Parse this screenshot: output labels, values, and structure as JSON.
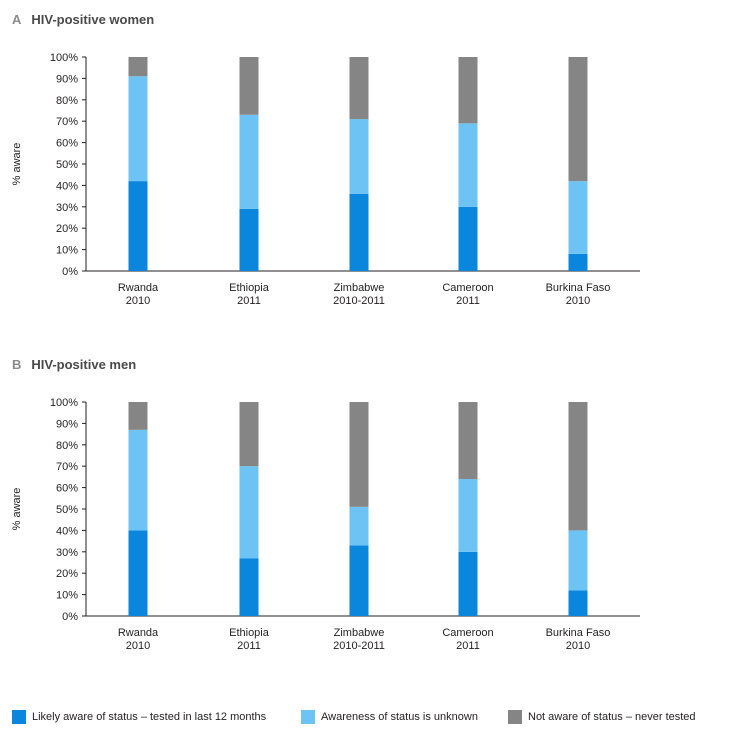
{
  "colors": {
    "aware": "#0a86dd",
    "unknown": "#6dc3f3",
    "never": "#858585"
  },
  "legend": [
    {
      "label": "Likely aware of status – tested in last 12 months",
      "color": "#0a86dd"
    },
    {
      "label": "Awareness of status is unknown",
      "color": "#6dc3f3"
    },
    {
      "label": "Not aware of status – never tested",
      "color": "#858585"
    }
  ],
  "chart_data": [
    {
      "type": "bar",
      "stacked": true,
      "panel_letter": "A",
      "title": "HIV-positive women",
      "ylabel": "% aware",
      "ylim": [
        0,
        100
      ],
      "yticks": [
        "0%",
        "10%",
        "20%",
        "30%",
        "40%",
        "50%",
        "60%",
        "70%",
        "80%",
        "90%",
        "100%"
      ],
      "categories": [
        [
          "Rwanda",
          "2010"
        ],
        [
          "Ethiopia",
          "2011"
        ],
        [
          "Zimbabwe",
          "2010-2011"
        ],
        [
          "Cameroon",
          "2011"
        ],
        [
          "Burkina Faso",
          "2010"
        ]
      ],
      "series": [
        {
          "name": "Likely aware of status – tested in last 12 months",
          "values": [
            42,
            29,
            36,
            30,
            8
          ]
        },
        {
          "name": "Awareness of status is unknown",
          "values": [
            49,
            44,
            35,
            39,
            34
          ]
        },
        {
          "name": "Not aware of status – never tested",
          "values": [
            9,
            27,
            29,
            31,
            58
          ]
        }
      ]
    },
    {
      "type": "bar",
      "stacked": true,
      "panel_letter": "B",
      "title": "HIV-positive men",
      "ylabel": "% aware",
      "ylim": [
        0,
        100
      ],
      "yticks": [
        "0%",
        "10%",
        "20%",
        "30%",
        "40%",
        "50%",
        "60%",
        "70%",
        "80%",
        "90%",
        "100%"
      ],
      "categories": [
        [
          "Rwanda",
          "2010"
        ],
        [
          "Ethiopia",
          "2011"
        ],
        [
          "Zimbabwe",
          "2010-2011"
        ],
        [
          "Cameroon",
          "2011"
        ],
        [
          "Burkina Faso",
          "2010"
        ]
      ],
      "series": [
        {
          "name": "Likely aware of status – tested in last 12 months",
          "values": [
            40,
            27,
            33,
            30,
            12
          ]
        },
        {
          "name": "Awareness of status is unknown",
          "values": [
            47,
            43,
            18,
            34,
            28
          ]
        },
        {
          "name": "Not aware of status – never tested",
          "values": [
            13,
            30,
            49,
            36,
            60
          ]
        }
      ]
    }
  ]
}
